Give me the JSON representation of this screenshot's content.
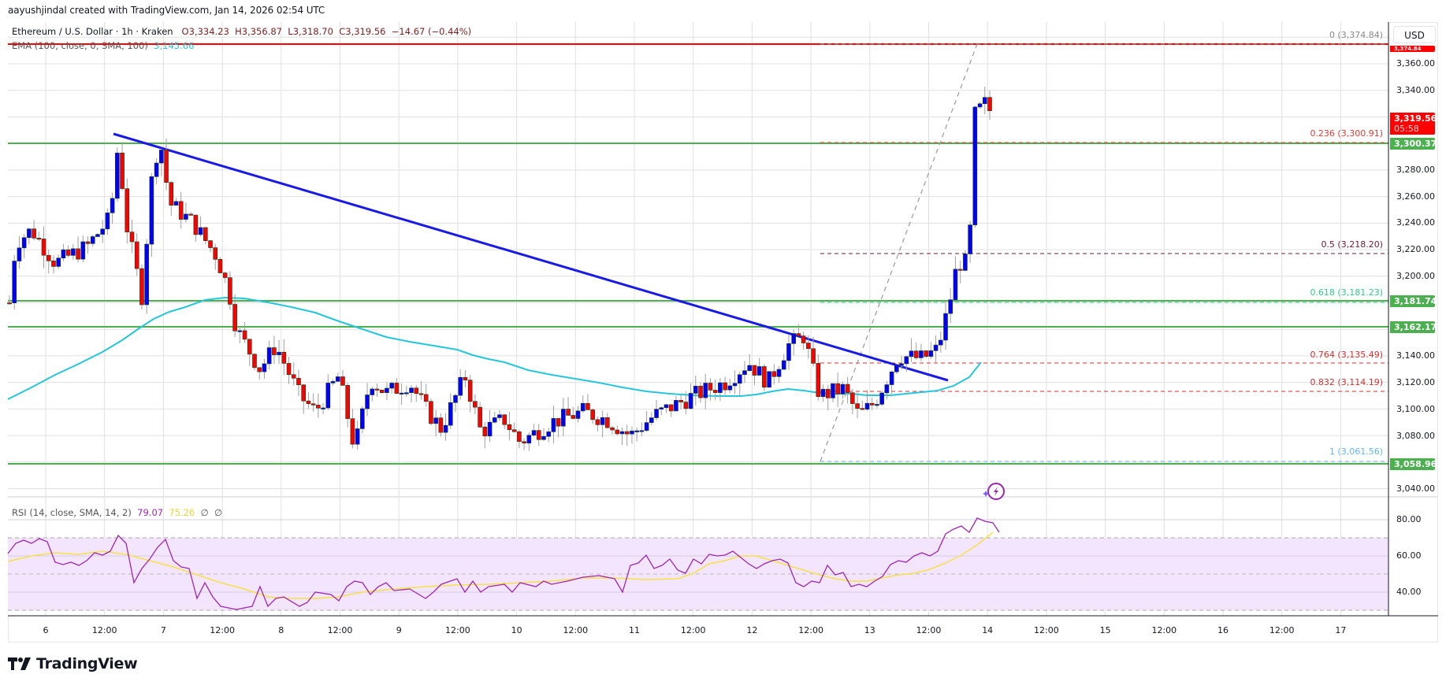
{
  "credit": "aayushjindal created with TradingView.com, Jan 14, 2026 02:54 UTC",
  "header": {
    "symbol": "Ethereum / U.S. Dollar · 1h · Kraken",
    "open": "O3,334.23",
    "high": "H3,356.87",
    "low": "L3,318.70",
    "close": "C3,319.56",
    "change": "−14.67 (−0.44%)",
    "ema_label": "EMA (100, close, 0, SMA, 100)",
    "ema_value": "3,145.66"
  },
  "rsi_legend": {
    "label": "RSI (14, close, SMA, 14, 2)",
    "rsi_value": "79.07",
    "sma_value": "75.26",
    "extra1": "∅",
    "extra2": "∅"
  },
  "currency": "USD",
  "colors": {
    "up": "#0000ff",
    "down": "#ff0000",
    "support": "#4caf50",
    "resistance": "#ff0000",
    "trendline": "#1a1ae6",
    "ema": "#26c6da",
    "rsi": "#9c27b0",
    "rsi_sma": "#f5e14a",
    "rsi_band": "#f3e5fd"
  },
  "price_axis": [
    "3,360.00",
    "3,340.00",
    "3,280.00",
    "3,260.00",
    "3,240.00",
    "3,220.00",
    "3,200.00",
    "3,140.00",
    "3,120.00",
    "3,100.00",
    "3,080.00",
    "3,040.00"
  ],
  "price_tags": {
    "top_hidden": "3,374.84",
    "current": "3,319.56",
    "countdown": "05:58",
    "s1": "3,300.37",
    "s2": "3,181.74",
    "s3": "3,162.17",
    "s4": "3,058.96"
  },
  "rsi_axis": [
    "80.00",
    "60.00",
    "40.00"
  ],
  "fib_levels": [
    {
      "label": "0 (3,374.84)",
      "color": "#888888"
    },
    {
      "label": "0.236 (3,300.91)",
      "color": "#e53935"
    },
    {
      "label": "0.5 (3,218.20)",
      "color": "#6d1b3a"
    },
    {
      "label": "0.618 (3,181.23)",
      "color": "#2ecc8a"
    },
    {
      "label": "0.764 (3,135.49)",
      "color": "#d32f2f"
    },
    {
      "label": "0.832 (3,114.19)",
      "color": "#d32f2f"
    },
    {
      "label": "1 (3,061.56)",
      "color": "#64b5f6"
    }
  ],
  "time_axis": [
    "6",
    "12:00",
    "7",
    "12:00",
    "8",
    "12:00",
    "9",
    "12:00",
    "10",
    "12:00",
    "11",
    "12:00",
    "12",
    "12:00",
    "13",
    "12:00",
    "14",
    "12:00",
    "15",
    "12:00",
    "16",
    "12:00",
    "17"
  ],
  "logo_text": "TradingView",
  "chart_data": {
    "type": "candlestick",
    "title": "Ethereum / U.S. Dollar · 1h · Kraken",
    "xlabel": "",
    "ylabel": "USD",
    "ylim": [
      3030,
      3380
    ],
    "x_ticks": [
      "6",
      "12:00",
      "7",
      "12:00",
      "8",
      "12:00",
      "9",
      "12:00",
      "10",
      "12:00",
      "11",
      "12:00",
      "12",
      "12:00",
      "13",
      "12:00",
      "14",
      "12:00",
      "15",
      "12:00",
      "16",
      "12:00",
      "17"
    ],
    "ohlc_last": {
      "open": 3334.23,
      "high": 3356.87,
      "low": 3318.7,
      "close": 3319.56,
      "change": -14.67,
      "change_pct": -0.44
    },
    "ema100_last": 3145.66,
    "horizontal_levels": [
      {
        "name": "resistance",
        "value": 3374.84,
        "color": "#ff0000"
      },
      {
        "name": "support",
        "value": 3300.37,
        "color": "#4caf50"
      },
      {
        "name": "support",
        "value": 3181.74,
        "color": "#4caf50"
      },
      {
        "name": "support",
        "value": 3162.17,
        "color": "#4caf50"
      },
      {
        "name": "support",
        "value": 3058.96,
        "color": "#4caf50"
      }
    ],
    "fibonacci": [
      {
        "ratio": 0,
        "value": 3374.84
      },
      {
        "ratio": 0.236,
        "value": 3300.91
      },
      {
        "ratio": 0.5,
        "value": 3218.2
      },
      {
        "ratio": 0.618,
        "value": 3181.23
      },
      {
        "ratio": 0.764,
        "value": 3135.49
      },
      {
        "ratio": 0.832,
        "value": 3114.19
      },
      {
        "ratio": 1,
        "value": 3061.56
      }
    ],
    "trendline": {
      "start": {
        "x": "Jan 6 ~14:00",
        "y": 3305
      },
      "end": {
        "x": "Jan 13 ~16:00",
        "y": 3122
      }
    },
    "candles_approx": [
      [
        3180,
        3195,
        3160,
        3190
      ],
      [
        3190,
        3225,
        3185,
        3220
      ],
      [
        3220,
        3232,
        3212,
        3225
      ],
      [
        3225,
        3245,
        3222,
        3242
      ],
      [
        3242,
        3250,
        3234,
        3238
      ],
      [
        3238,
        3242,
        3228,
        3232
      ],
      [
        3232,
        3240,
        3210,
        3214
      ],
      [
        3214,
        3220,
        3196,
        3210
      ],
      [
        3210,
        3212,
        3200,
        3208
      ],
      [
        3208,
        3218,
        3202,
        3206
      ],
      [
        3206,
        3224,
        3200,
        3220
      ],
      [
        3220,
        3224,
        3210,
        3216
      ],
      [
        3216,
        3222,
        3208,
        3211
      ],
      [
        3211,
        3252,
        3210,
        3244
      ],
      [
        3244,
        3245,
        3208,
        3211
      ],
      [
        3211,
        3214,
        3202,
        3210
      ],
      [
        3210,
        3218,
        3206,
        3212
      ],
      [
        3212,
        3226,
        3208,
        3222
      ],
      [
        3222,
        3236,
        3218,
        3232
      ],
      [
        3232,
        3240,
        3226,
        3234
      ],
      [
        3234,
        3236,
        3228,
        3234
      ],
      [
        3234,
        3303,
        3232,
        3290
      ],
      [
        3290,
        3300,
        3260,
        3284
      ],
      [
        3284,
        3286,
        3225,
        3238
      ],
      [
        3238,
        3240,
        3175,
        3182
      ],
      [
        3182,
        3234,
        3178,
        3228
      ],
      [
        3228,
        3240,
        3222,
        3236
      ],
      [
        3236,
        3250,
        3224,
        3258
      ],
      [
        3258,
        3295,
        3250,
        3293
      ],
      [
        3293,
        3300,
        3275,
        3293
      ],
      [
        3293,
        3296,
        3255,
        3290
      ],
      [
        3290,
        3292,
        3242,
        3245
      ],
      [
        3245,
        3264,
        3240,
        3270
      ],
      [
        3270,
        3285,
        3250,
        3266
      ],
      [
        3266,
        3270,
        3240,
        3247
      ],
      [
        3247,
        3254,
        3232,
        3232
      ],
      [
        3232,
        3250,
        3228,
        3242
      ],
      [
        3242,
        3250,
        3234,
        3244
      ],
      [
        3244,
        3252,
        3236,
        3240
      ],
      [
        3240,
        3242,
        3180,
        3185
      ],
      [
        3185,
        3218,
        3182,
        3212
      ],
      [
        3212,
        3214,
        3190,
        3208
      ],
      [
        3208,
        3212,
        3196,
        3200
      ],
      [
        3200,
        3206,
        3160,
        3168
      ]
    ]
  }
}
